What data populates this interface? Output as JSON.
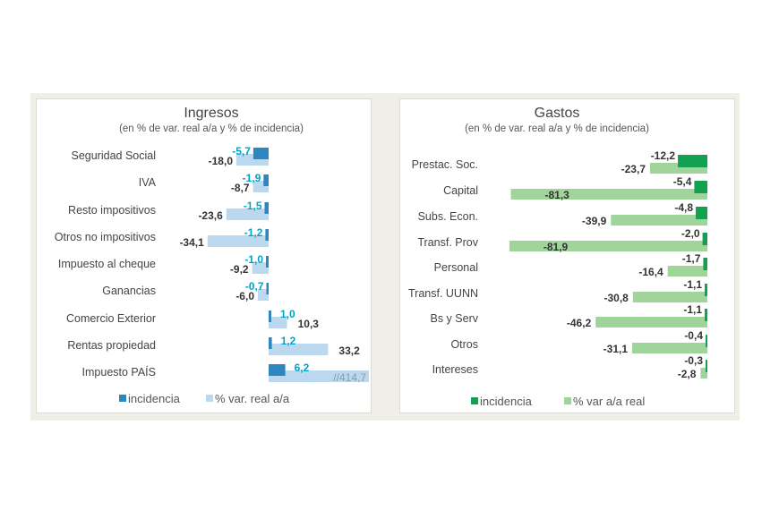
{
  "chart_data": [
    {
      "type": "bar",
      "title": "Ingresos",
      "subtitle": "(en % de var. real a/a y % de incidencia)",
      "categories": [
        "Seguridad Social",
        "IVA",
        "Resto impositivos",
        "Otros no impositivos",
        "Impuesto al cheque",
        "Ganancias",
        "Comercio Exterior",
        "Rentas propiedad",
        "Impuesto PAÍS"
      ],
      "series": [
        {
          "name": "incidencia",
          "values": [
            -5.7,
            -1.9,
            -1.5,
            -1.2,
            -1.0,
            -0.7,
            1.0,
            1.2,
            6.2
          ],
          "labels": [
            "-5,7",
            "-1,9",
            "-1,5",
            "-1,2",
            "-1,0",
            "-0,7",
            "1,0",
            "1,2",
            "6,2"
          ],
          "color": "#2e86c1",
          "label_color": "#00a3c8"
        },
        {
          "name": "% var. real a/a",
          "values": [
            -18.0,
            -8.7,
            -23.6,
            -34.1,
            -9.2,
            -6.0,
            10.3,
            33.2,
            414.7
          ],
          "labels": [
            "-18,0",
            "-8,7",
            "-23,6",
            "-34,1",
            "-9,2",
            "-6,0",
            "10,3",
            "33,2",
            "//414,7"
          ],
          "color": "#bcd8ee"
        }
      ],
      "legend": [
        "incidencia",
        "% var. real a/a"
      ],
      "legend_position": "bottom"
    },
    {
      "type": "bar",
      "title": "Gastos",
      "subtitle": "(en % de var. real a/a y % de incidencia)",
      "categories": [
        "Prestac. Soc.",
        "Capital",
        "Subs. Econ.",
        "Transf. Prov",
        "Personal",
        "Transf. UUNN",
        "Bs y Serv",
        "Otros",
        "Intereses"
      ],
      "series": [
        {
          "name": "incidencia",
          "values": [
            -12.2,
            -5.4,
            -4.8,
            -2.0,
            -1.7,
            -1.1,
            -1.1,
            -0.4,
            -0.3
          ],
          "labels": [
            "-12,2",
            "-5,4",
            "-4,8",
            "-2,0",
            "-1,7",
            "-1,1",
            "-1,1",
            "-0,4",
            "-0,3"
          ],
          "color": "#12a150"
        },
        {
          "name": "% var a/a real",
          "values": [
            -23.7,
            -81.3,
            -39.9,
            -81.9,
            -16.4,
            -30.8,
            -46.2,
            -31.1,
            -2.8
          ],
          "labels": [
            "-23,7",
            "-81,3",
            "-39,9",
            "-81,9",
            "-16,4",
            "-30,8",
            "-46,2",
            "-31,1",
            "-2,8"
          ],
          "color": "#9fd49a"
        }
      ],
      "legend": [
        "incidencia",
        "% var a/a real"
      ],
      "legend_position": "bottom"
    }
  ]
}
